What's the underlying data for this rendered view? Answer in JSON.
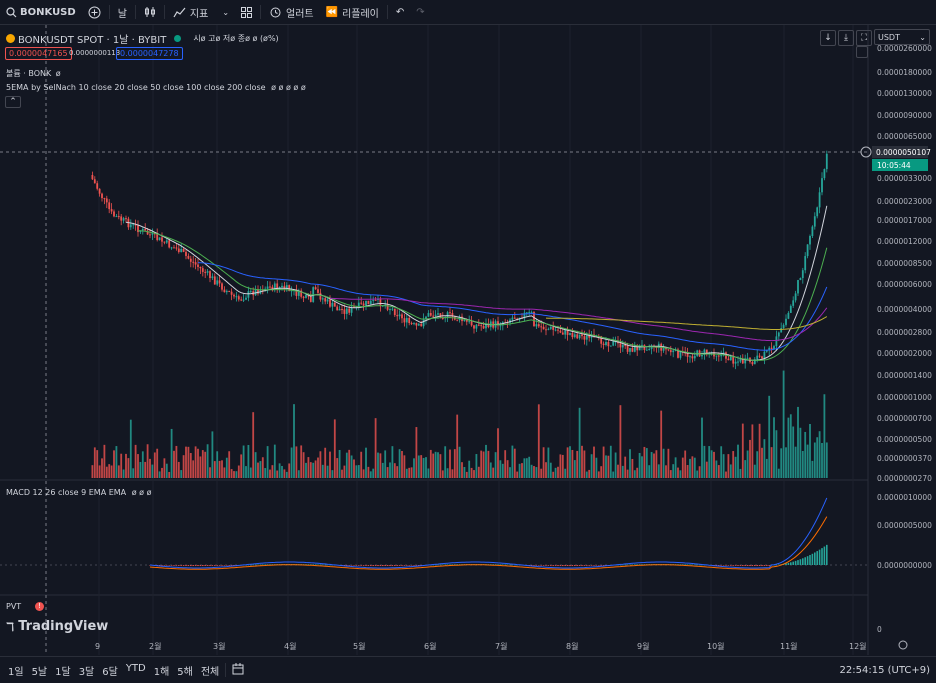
{
  "toolbar": {
    "symbol": "BONKUSD",
    "add_icon": "plus-circle-icon",
    "interval": "날",
    "candle_icon": "candles-icon",
    "indicators_label": "지표",
    "layout_icon": "grid-icon",
    "alert_label": "얼러트",
    "replay_label": "리플레이",
    "undo_icon": "undo-icon",
    "redo_icon": "redo-icon"
  },
  "legend": {
    "title": "BONKUSDT SPOT · 1날 · BYBIT",
    "ohlc": "시ø 고ø 저ø 종ø ø (ø%)",
    "bid": "0.0000047165",
    "spread": "0.0000000113",
    "ask": "0.0000047278",
    "volume_label": "볼륨 · BONK",
    "volume_value": "ø",
    "ema_label": "5EMA by SelNach 10 close 20 close 50 close 100 close 200 close",
    "ema_values": "ø ø ø ø ø",
    "macd_label": "MACD 12 26 close 9 EMA EMA",
    "macd_values": "ø ø ø",
    "pvt_label": "PVT",
    "tv_logo": "TradingView"
  },
  "currency": "USDT",
  "price_axis": [
    "0.0000260000",
    "0.0000180000",
    "0.0000130000",
    "0.0000090000",
    "0.0000065000",
    "0.0000050107",
    "0.0000033000",
    "0.0000023000",
    "0.0000017000",
    "0.0000012000",
    "0.0000008500",
    "0.0000006000",
    "0.0000004000",
    "0.0000002800",
    "0.0000002000",
    "0.0000001400",
    "0.0000001000",
    "0.0000000700",
    "0.0000000500",
    "0.0000000370",
    "0.0000000270"
  ],
  "current_price": "0.0000050107",
  "countdown": "10:05:44",
  "macd_axis": [
    "0.0000010000",
    "0.0000005000",
    "0.0000000000"
  ],
  "pvt_axis": [
    "0"
  ],
  "time_axis": [
    "9",
    "2월",
    "3월",
    "4월",
    "5월",
    "6월",
    "7월",
    "8월",
    "9월",
    "10월",
    "11월",
    "12월"
  ],
  "ranges": [
    "1일",
    "5날",
    "1달",
    "3달",
    "6달",
    "YTD",
    "1해",
    "5해",
    "전체"
  ],
  "clock": "22:54:15 (UTC+9)",
  "colors": {
    "up": "#26a69a",
    "down": "#ef5350",
    "ema10": "#d1d4dc",
    "ema20": "#4caf50",
    "ema50": "#2962ff",
    "ema100": "#9c27b0",
    "ema200": "#c0b032",
    "macd": "#2962ff",
    "signal": "#ff6d00"
  }
}
